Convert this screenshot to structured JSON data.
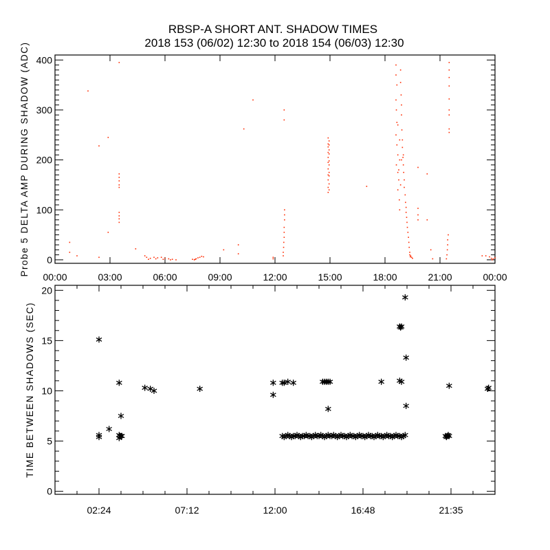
{
  "title": "RBSP-A SHORT ANT. SHADOW TIMES",
  "subtitle": "2018 153 (06/02) 12:30 to 2018 154 (06/03) 12:30",
  "colors": {
    "top_points": "#ff2a00",
    "bottom_points": "#000000",
    "axes": "#000000"
  },
  "chart_data": [
    {
      "type": "scatter",
      "ylabel": "Probe 5 DELTA AMP DURING SHADOW (ADC)",
      "xlim_hours": [
        0,
        24
      ],
      "ylim": [
        -7,
        410
      ],
      "x_tick_labels": [
        "00:00",
        "03:00",
        "06:00",
        "09:00",
        "12:00",
        "15:00",
        "18:00",
        "21:00",
        "00:00"
      ],
      "x_tick_hours": [
        0,
        3,
        6,
        9,
        12,
        15,
        18,
        21,
        24
      ],
      "y_ticks": [
        0,
        100,
        200,
        300,
        400
      ],
      "marker": "dot",
      "points": [
        [
          0.8,
          35
        ],
        [
          0.8,
          15
        ],
        [
          1.2,
          8
        ],
        [
          1.8,
          338
        ],
        [
          2.4,
          228
        ],
        [
          2.4,
          5
        ],
        [
          2.9,
          245
        ],
        [
          2.9,
          55
        ],
        [
          3.5,
          395
        ],
        [
          3.5,
          172
        ],
        [
          3.5,
          165
        ],
        [
          3.5,
          158
        ],
        [
          3.5,
          150
        ],
        [
          3.5,
          145
        ],
        [
          3.5,
          95
        ],
        [
          3.5,
          88
        ],
        [
          3.5,
          82
        ],
        [
          3.5,
          75
        ],
        [
          4.4,
          22
        ],
        [
          4.9,
          8
        ],
        [
          5.0,
          5
        ],
        [
          5.1,
          1
        ],
        [
          5.2,
          3
        ],
        [
          5.4,
          5
        ],
        [
          5.5,
          2
        ],
        [
          5.6,
          4
        ],
        [
          5.8,
          5
        ],
        [
          5.9,
          1
        ],
        [
          6.0,
          3
        ],
        [
          6.2,
          2
        ],
        [
          6.3,
          0
        ],
        [
          6.4,
          1
        ],
        [
          6.6,
          0
        ],
        [
          7.5,
          1
        ],
        [
          7.6,
          0
        ],
        [
          7.65,
          1
        ],
        [
          7.7,
          2
        ],
        [
          7.8,
          4
        ],
        [
          7.9,
          5
        ],
        [
          8.0,
          7
        ],
        [
          8.1,
          6
        ],
        [
          9.2,
          20
        ],
        [
          10.0,
          30
        ],
        [
          10.0,
          12
        ],
        [
          10.3,
          262
        ],
        [
          10.8,
          320
        ],
        [
          11.9,
          5
        ],
        [
          11.9,
          2
        ],
        [
          12.45,
          8
        ],
        [
          12.45,
          15
        ],
        [
          12.47,
          25
        ],
        [
          12.48,
          35
        ],
        [
          12.5,
          45
        ],
        [
          12.5,
          55
        ],
        [
          12.5,
          65
        ],
        [
          12.52,
          80
        ],
        [
          12.52,
          90
        ],
        [
          12.52,
          100
        ],
        [
          12.5,
          300
        ],
        [
          12.5,
          280
        ],
        [
          14.9,
          135
        ],
        [
          14.95,
          140
        ],
        [
          14.9,
          145
        ],
        [
          14.95,
          152
        ],
        [
          14.9,
          160
        ],
        [
          14.95,
          168
        ],
        [
          14.9,
          170
        ],
        [
          14.95,
          175
        ],
        [
          14.9,
          182
        ],
        [
          14.95,
          190
        ],
        [
          14.9,
          195
        ],
        [
          14.95,
          198
        ],
        [
          14.9,
          205
        ],
        [
          14.95,
          212
        ],
        [
          14.9,
          215
        ],
        [
          14.95,
          220
        ],
        [
          14.9,
          226
        ],
        [
          14.95,
          230
        ],
        [
          14.9,
          232
        ],
        [
          14.95,
          238
        ],
        [
          14.9,
          244
        ],
        [
          17.0,
          147
        ],
        [
          18.6,
          390
        ],
        [
          18.6,
          370
        ],
        [
          18.65,
          350
        ],
        [
          18.6,
          320
        ],
        [
          18.62,
          300
        ],
        [
          18.65,
          275
        ],
        [
          18.7,
          270
        ],
        [
          18.6,
          250
        ],
        [
          18.65,
          230
        ],
        [
          18.7,
          210
        ],
        [
          18.62,
          190
        ],
        [
          18.7,
          175
        ],
        [
          18.75,
          160
        ],
        [
          18.7,
          140
        ],
        [
          18.78,
          120
        ],
        [
          18.8,
          100
        ],
        [
          18.85,
          380
        ],
        [
          18.85,
          355
        ],
        [
          18.88,
          330
        ],
        [
          18.9,
          310
        ],
        [
          18.9,
          290
        ],
        [
          18.92,
          260
        ],
        [
          18.95,
          240
        ],
        [
          18.95,
          225
        ],
        [
          18.98,
          205
        ],
        [
          19.0,
          190
        ],
        [
          19.02,
          175
        ],
        [
          19.05,
          160
        ],
        [
          19.05,
          145
        ],
        [
          19.1,
          130
        ],
        [
          19.12,
          115
        ],
        [
          19.15,
          105
        ],
        [
          19.15,
          95
        ],
        [
          19.18,
          85
        ],
        [
          19.2,
          75
        ],
        [
          19.22,
          65
        ],
        [
          19.25,
          55
        ],
        [
          19.28,
          45
        ],
        [
          19.3,
          35
        ],
        [
          19.32,
          25
        ],
        [
          19.35,
          15
        ],
        [
          19.35,
          10
        ],
        [
          19.38,
          6
        ],
        [
          19.4,
          8
        ],
        [
          19.45,
          5
        ],
        [
          19.5,
          3
        ],
        [
          18.8,
          200
        ],
        [
          18.75,
          180
        ],
        [
          18.85,
          150
        ],
        [
          18.9,
          200
        ],
        [
          19.0,
          210
        ],
        [
          18.8,
          240
        ],
        [
          19.8,
          185
        ],
        [
          19.8,
          103
        ],
        [
          19.8,
          90
        ],
        [
          19.8,
          80
        ],
        [
          20.3,
          172
        ],
        [
          20.3,
          80
        ],
        [
          20.5,
          20
        ],
        [
          20.6,
          2
        ],
        [
          21.35,
          2
        ],
        [
          21.38,
          10
        ],
        [
          21.4,
          20
        ],
        [
          21.42,
          30
        ],
        [
          21.42,
          40
        ],
        [
          21.45,
          50
        ],
        [
          21.5,
          395
        ],
        [
          21.5,
          380
        ],
        [
          21.5,
          365
        ],
        [
          21.5,
          348
        ],
        [
          21.5,
          322
        ],
        [
          21.5,
          300
        ],
        [
          21.5,
          290
        ],
        [
          21.5,
          262
        ],
        [
          21.5,
          255
        ],
        [
          23.3,
          8
        ],
        [
          23.5,
          8
        ],
        [
          23.7,
          6
        ],
        [
          23.8,
          3
        ],
        [
          23.85,
          0
        ],
        [
          23.9,
          2
        ],
        [
          24.0,
          4
        ]
      ]
    },
    {
      "type": "scatter",
      "ylabel": "TIME BETWEEN SHADOWS (SEC)",
      "xlim_hours": [
        0,
        24
      ],
      "ylim": [
        -0.3,
        20.5
      ],
      "x_tick_labels": [
        "02:24",
        "07:12",
        "12:00",
        "16:48",
        "21:35"
      ],
      "x_tick_hours": [
        2.4,
        7.2,
        12,
        16.8,
        21.6
      ],
      "y_ticks": [
        0,
        5,
        10,
        15,
        20
      ],
      "marker": "asterisk",
      "points": [
        [
          2.4,
          5.4
        ],
        [
          2.4,
          5.6
        ],
        [
          2.4,
          15.1
        ],
        [
          2.95,
          6.2
        ],
        [
          3.5,
          10.8
        ],
        [
          3.6,
          7.5
        ],
        [
          3.5,
          5.3
        ],
        [
          3.55,
          5.5
        ],
        [
          3.6,
          5.5
        ],
        [
          3.65,
          5.5
        ],
        [
          3.5,
          5.6
        ],
        [
          4.9,
          10.3
        ],
        [
          5.2,
          10.2
        ],
        [
          5.4,
          10.0
        ],
        [
          7.9,
          10.2
        ],
        [
          11.9,
          10.8
        ],
        [
          11.9,
          9.6
        ],
        [
          12.4,
          10.8
        ],
        [
          12.5,
          10.8
        ],
        [
          12.7,
          10.9
        ],
        [
          13.0,
          10.8
        ],
        [
          14.6,
          10.9
        ],
        [
          14.7,
          10.9
        ],
        [
          14.8,
          10.9
        ],
        [
          14.9,
          10.9
        ],
        [
          15.0,
          10.9
        ],
        [
          14.9,
          8.2
        ],
        [
          17.8,
          10.9
        ],
        [
          18.8,
          16.4
        ],
        [
          18.85,
          16.3
        ],
        [
          18.9,
          16.4
        ],
        [
          18.8,
          11.0
        ],
        [
          18.9,
          10.9
        ],
        [
          19.1,
          19.3
        ],
        [
          19.15,
          13.3
        ],
        [
          19.15,
          8.5
        ],
        [
          21.5,
          10.5
        ],
        [
          23.6,
          10.2
        ],
        [
          23.65,
          10.3
        ],
        [
          21.3,
          5.5
        ],
        [
          21.35,
          5.4
        ],
        [
          21.4,
          5.5
        ],
        [
          21.45,
          5.6
        ],
        [
          21.5,
          5.5
        ],
        [
          12.4,
          5.5
        ],
        [
          12.5,
          5.4
        ],
        [
          12.6,
          5.5
        ],
        [
          12.7,
          5.6
        ],
        [
          12.8,
          5.5
        ],
        [
          12.9,
          5.4
        ],
        [
          13.0,
          5.5
        ],
        [
          13.1,
          5.5
        ],
        [
          13.2,
          5.6
        ],
        [
          13.3,
          5.5
        ],
        [
          13.4,
          5.4
        ],
        [
          13.5,
          5.5
        ],
        [
          13.6,
          5.5
        ],
        [
          13.7,
          5.6
        ],
        [
          13.8,
          5.5
        ],
        [
          13.9,
          5.5
        ],
        [
          14.0,
          5.4
        ],
        [
          14.1,
          5.5
        ],
        [
          14.2,
          5.6
        ],
        [
          14.3,
          5.5
        ],
        [
          14.4,
          5.5
        ],
        [
          14.5,
          5.6
        ],
        [
          14.6,
          5.5
        ],
        [
          14.7,
          5.4
        ],
        [
          14.8,
          5.5
        ],
        [
          14.9,
          5.6
        ],
        [
          15.0,
          5.5
        ],
        [
          15.1,
          5.5
        ],
        [
          15.2,
          5.6
        ],
        [
          15.3,
          5.5
        ],
        [
          15.4,
          5.4
        ],
        [
          15.5,
          5.5
        ],
        [
          15.6,
          5.6
        ],
        [
          15.7,
          5.5
        ],
        [
          15.8,
          5.5
        ],
        [
          15.9,
          5.4
        ],
        [
          16.0,
          5.5
        ],
        [
          16.1,
          5.6
        ],
        [
          16.2,
          5.5
        ],
        [
          16.3,
          5.5
        ],
        [
          16.4,
          5.4
        ],
        [
          16.5,
          5.5
        ],
        [
          16.6,
          5.6
        ],
        [
          16.7,
          5.5
        ],
        [
          16.8,
          5.5
        ],
        [
          16.9,
          5.4
        ],
        [
          17.0,
          5.5
        ],
        [
          17.1,
          5.6
        ],
        [
          17.2,
          5.5
        ],
        [
          17.3,
          5.5
        ],
        [
          17.4,
          5.4
        ],
        [
          17.5,
          5.5
        ],
        [
          17.6,
          5.6
        ],
        [
          17.7,
          5.5
        ],
        [
          17.8,
          5.5
        ],
        [
          17.9,
          5.4
        ],
        [
          18.0,
          5.5
        ],
        [
          18.1,
          5.6
        ],
        [
          18.2,
          5.5
        ],
        [
          18.3,
          5.5
        ],
        [
          18.4,
          5.4
        ],
        [
          18.5,
          5.5
        ],
        [
          18.6,
          5.6
        ],
        [
          18.7,
          5.5
        ],
        [
          18.8,
          5.5
        ],
        [
          18.9,
          5.4
        ],
        [
          19.0,
          5.5
        ],
        [
          19.1,
          5.6
        ]
      ]
    }
  ]
}
